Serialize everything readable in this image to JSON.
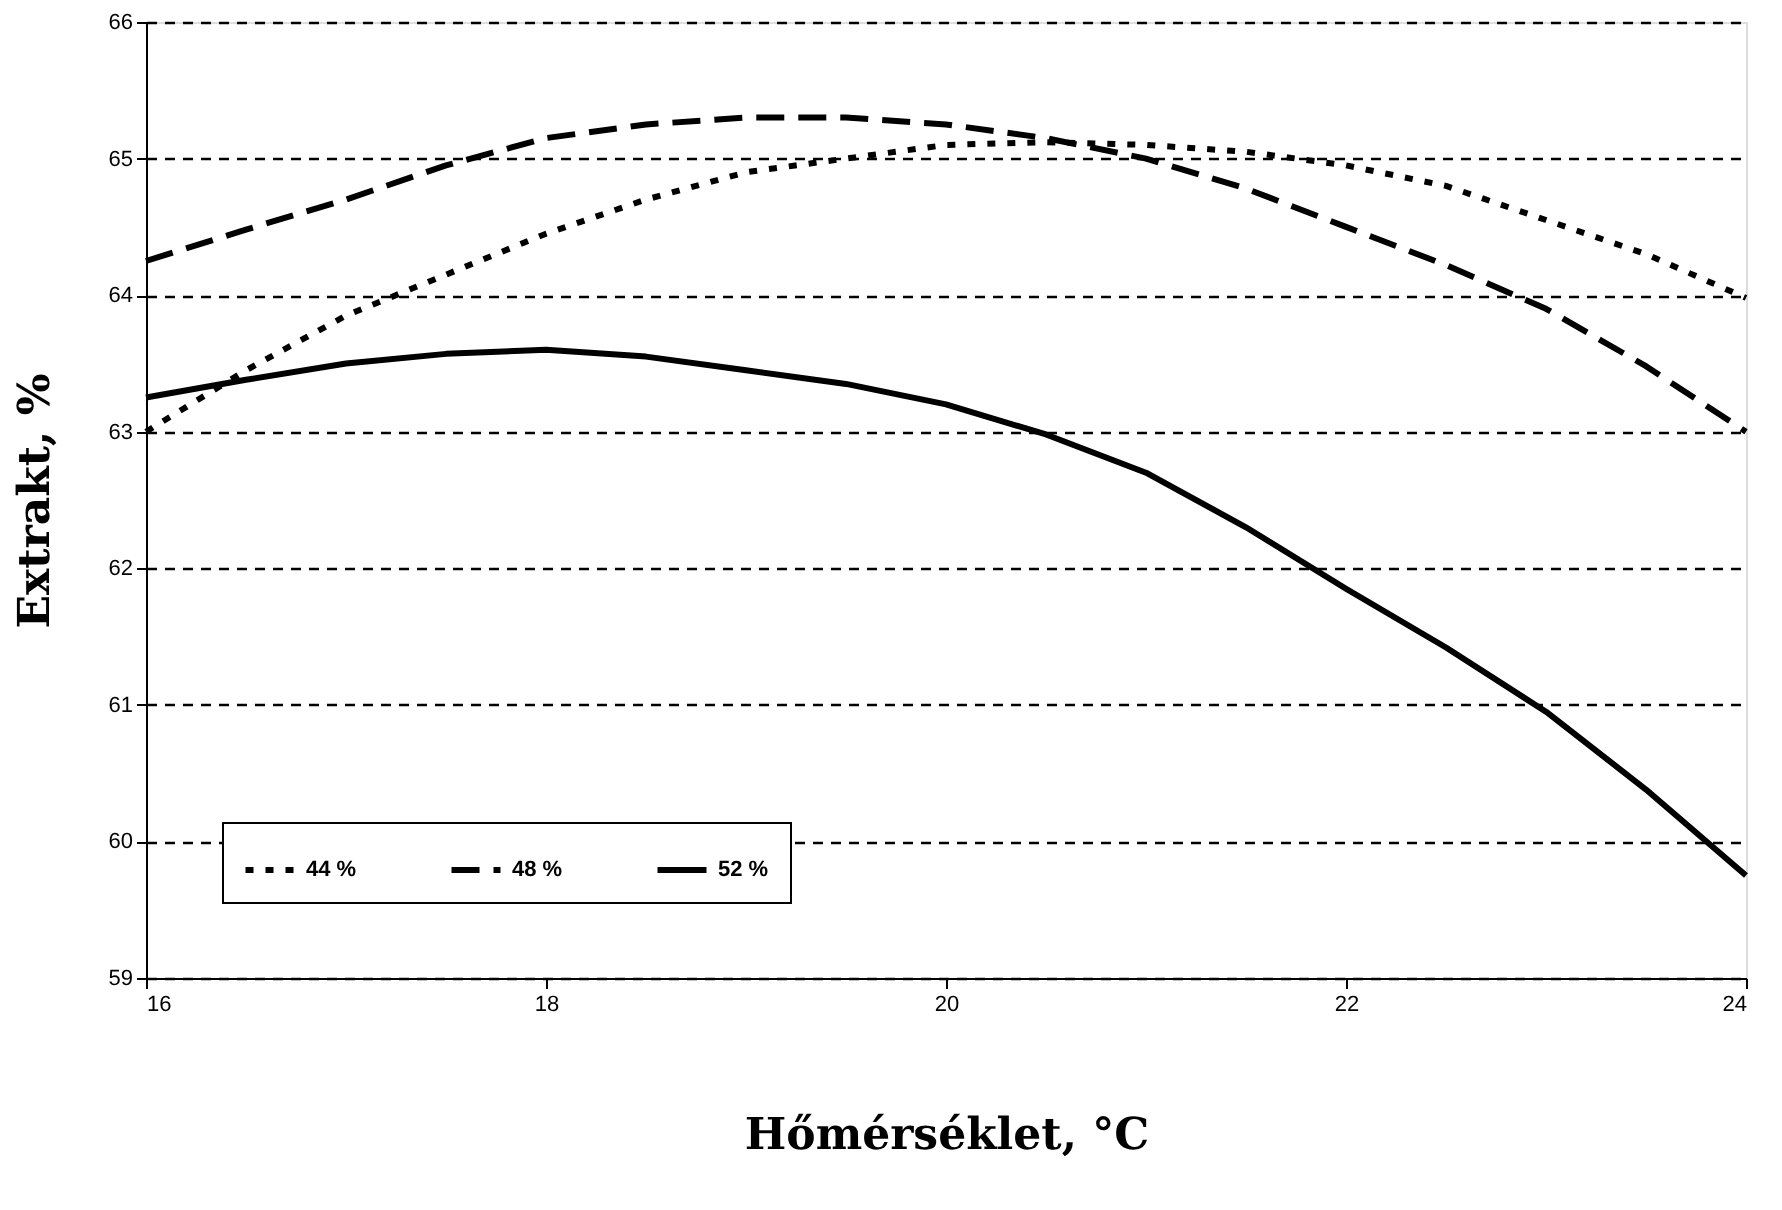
{
  "chart_data": {
    "type": "line",
    "xlabel": "Hőmérséklet, °C",
    "ylabel": "Extrakt, %",
    "x": [
      16,
      16.5,
      17,
      17.5,
      18,
      18.5,
      19,
      19.5,
      20,
      20.5,
      21,
      21.5,
      22,
      22.5,
      23,
      23.5,
      24
    ],
    "series": [
      {
        "name": "44 %",
        "color": "#000000",
        "line_style": "dotted",
        "values": [
          63.0,
          63.45,
          63.85,
          64.15,
          64.45,
          64.7,
          64.9,
          65.0,
          65.1,
          65.12,
          65.1,
          65.05,
          64.95,
          64.8,
          64.55,
          64.3,
          63.98
        ]
      },
      {
        "name": "48 %",
        "color": "#000000",
        "line_style": "dashed",
        "values": [
          64.25,
          64.48,
          64.7,
          64.95,
          65.15,
          65.25,
          65.3,
          65.3,
          65.25,
          65.15,
          65.0,
          64.78,
          64.5,
          64.22,
          63.9,
          63.48,
          63.0
        ]
      },
      {
        "name": "52 %",
        "color": "#000000",
        "line_style": "solid",
        "values": [
          63.25,
          63.38,
          63.5,
          63.57,
          63.6,
          63.55,
          63.45,
          63.35,
          63.2,
          62.98,
          62.7,
          62.3,
          61.85,
          61.42,
          60.95,
          60.38,
          59.75
        ]
      }
    ],
    "xlim": [
      16,
      24
    ],
    "xticks": [
      16,
      18,
      20,
      22,
      24
    ],
    "ylim": [
      59,
      66
    ],
    "yticks": [
      59,
      60,
      61,
      62,
      63,
      64,
      65,
      66
    ],
    "grid": "y",
    "legend": "bottom left",
    "marker": "none"
  }
}
